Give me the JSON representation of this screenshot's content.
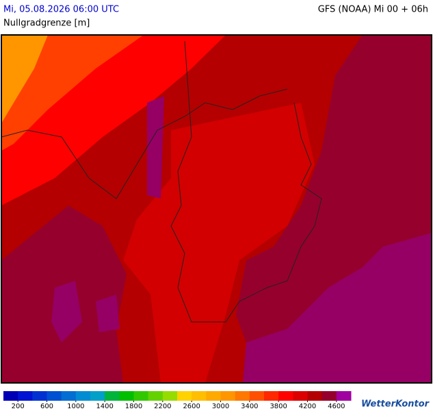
{
  "header": {
    "title": "Mi, 05.08.2026 06:00 UTC",
    "model": "GFS (NOAA) Mi 00 + 06h",
    "parameter": "Nullgradgrenze [m]"
  },
  "legend": {
    "ticks": [
      200,
      600,
      1000,
      1400,
      1800,
      2200,
      2600,
      3000,
      3400,
      3800,
      4200,
      4600
    ],
    "step": 200,
    "colors": [
      "#0000b4",
      "#0014d2",
      "#0032d2",
      "#0050d2",
      "#006ed2",
      "#008cd2",
      "#00a0c8",
      "#00b43c",
      "#00be00",
      "#32c800",
      "#64d200",
      "#96dc00",
      "#ffd200",
      "#ffbe00",
      "#ffaa00",
      "#ff9600",
      "#ff7800",
      "#ff5000",
      "#ff2800",
      "#ff0000",
      "#dc0000",
      "#b40000",
      "#96002d",
      "#a000a0"
    ]
  },
  "logo": "WetterKontor"
}
